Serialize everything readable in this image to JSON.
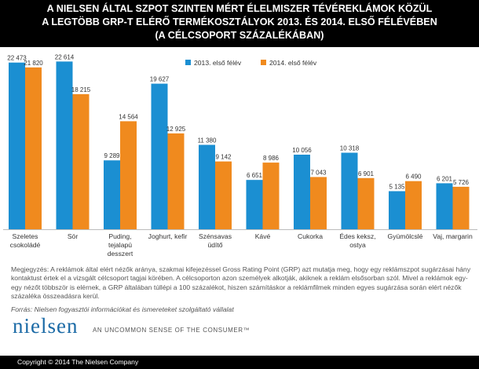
{
  "header": {
    "line1": "A NIELSEN ÁLTAL SZPOT SZINTEN MÉRT ÉLELMISZER TÉVÉREKLÁMOK KÖZÜL",
    "line2": "A LEGTÖBB GRP-T  ELÉRŐ TERMÉKOSZTÁLYOK 2013. ÉS 2014. ELSŐ FÉLÉVÉBEN",
    "line3": "(A CÉLCSOPORT SZÁZALÉKÁBAN)"
  },
  "colors": {
    "series2013": "#1b8fd2",
    "series2014": "#f08a1e",
    "header_bg": "#000000"
  },
  "chart_data": {
    "type": "bar",
    "categories": [
      [
        "Szeletes",
        "csokoládé"
      ],
      [
        "Sör"
      ],
      [
        "Puding,",
        "tejalapú",
        "desszert"
      ],
      [
        "Joghurt, kefir"
      ],
      [
        "Szénsavas",
        "üdítő"
      ],
      [
        "Kávé"
      ],
      [
        "Cukorka"
      ],
      [
        "Édes keksz,",
        "ostya"
      ],
      [
        "Gyümölcslé"
      ],
      [
        "Vaj, margarin"
      ]
    ],
    "series": [
      {
        "name": "2013. első félév",
        "values": [
          22473,
          22614,
          9289,
          19627,
          11380,
          6651,
          10056,
          10318,
          5135,
          6201
        ],
        "labels": [
          "22 473",
          "22 614",
          "9 289",
          "19 627",
          "11 380",
          "6 651",
          "10 056",
          "10 318",
          "5 135",
          "6 201"
        ]
      },
      {
        "name": "2014. első félév",
        "values": [
          21820,
          18215,
          14564,
          12925,
          9142,
          8986,
          7043,
          6901,
          6490,
          5726
        ],
        "labels": [
          "21 820",
          "18 215",
          "14 564",
          "12 925",
          "9 142",
          "8 986",
          "7 043",
          "6 901",
          "6 490",
          "5 726"
        ]
      }
    ],
    "ylim": [
      0,
      23500
    ],
    "grid": false,
    "legend_position": "top-right"
  },
  "note": "Megjegyzés: A reklámok által elért nézők aránya, szakmai kifejezéssel Gross Rating Point (GRP) azt mutatja meg, hogy egy reklámszpot sugárzásai hány kontaktust értek el a vizsgált célcsoport tagjai körében. A célcsoporton azon személyek alkotják, akiknek a reklám elsősorban szól. Mivel a reklámok egy-egy nézőt többször is elérnek, a GRP általában túllépi a 100 százalékot, hiszen számításkor a reklámfilmek minden egyes sugárzása során elért nézők százaléka összeadásra kerül.",
  "source": "Forrás: Nielsen fogyasztói információkat és ismereteket szolgáltató vállalat",
  "logo_text": "nielsen",
  "tagline": "AN UNCOMMON SENSE OF THE CONSUMER™",
  "footer": "Copyright © 2014  The Nielsen Company"
}
